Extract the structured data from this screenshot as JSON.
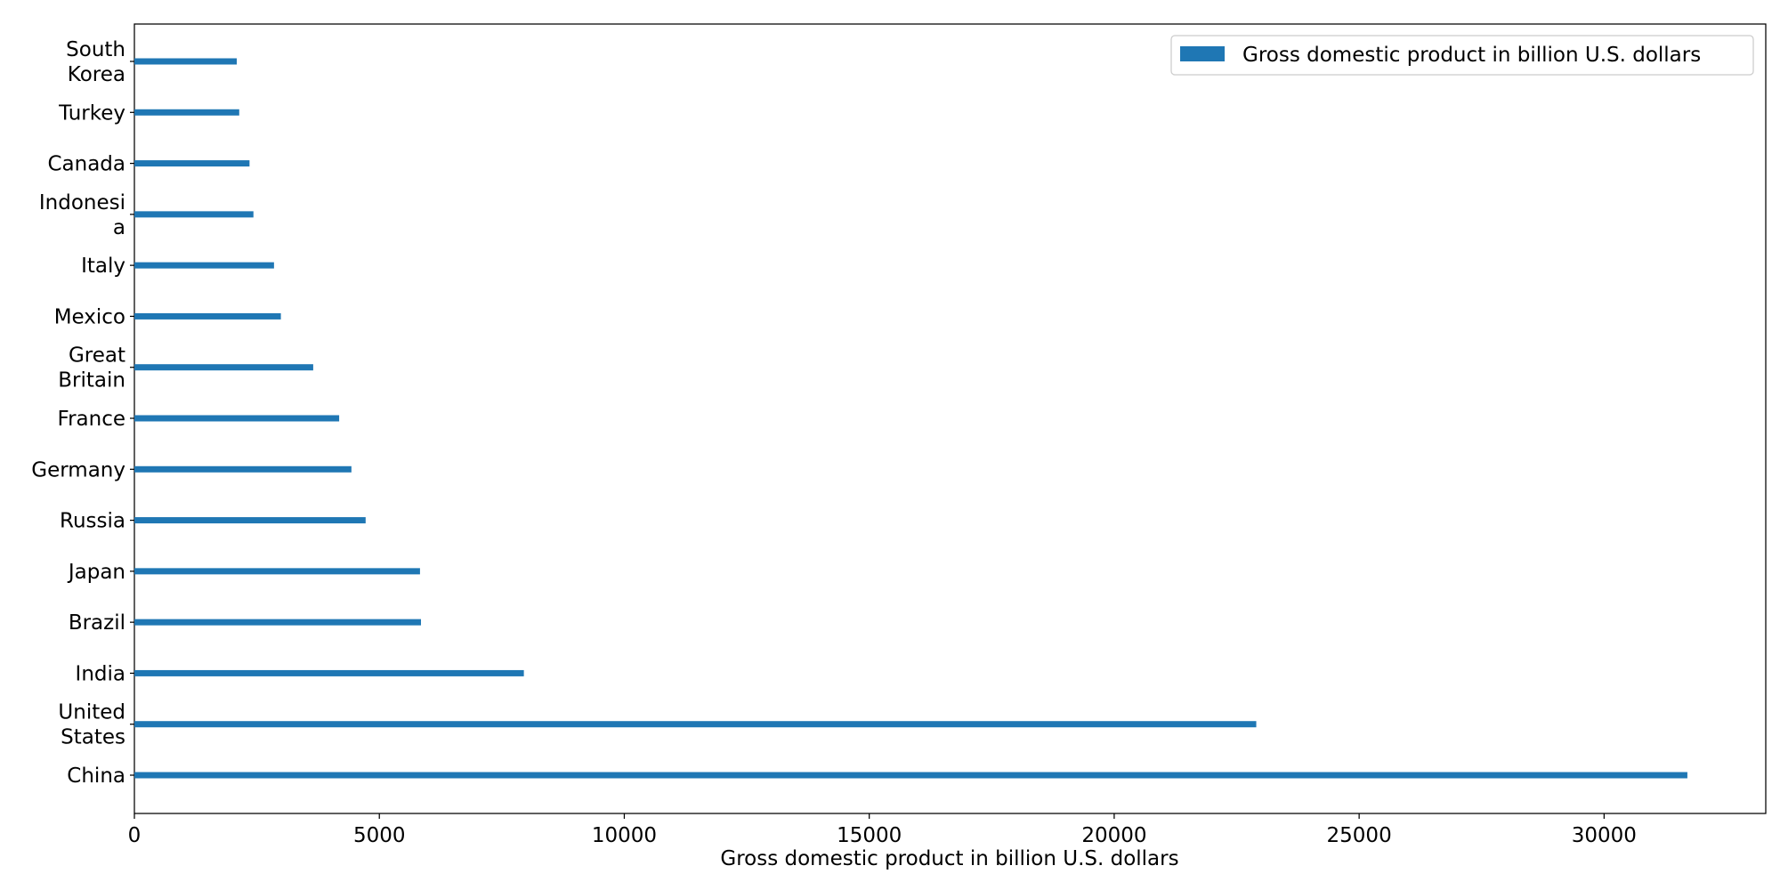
{
  "chart_data": {
    "type": "bar",
    "orientation": "horizontal",
    "categories": [
      "China",
      "United\nStates",
      "India",
      "Brazil",
      "Japan",
      "Russia",
      "Germany",
      "France",
      "Great\nBritain",
      "Mexico",
      "Italy",
      "Indonesi\na",
      "Canada",
      "Turkey",
      "South\nKorea"
    ],
    "series": [
      {
        "name": "Gross domestic product in billion U.S. dollars",
        "color": "#1f77b4",
        "values": [
          31700,
          22900,
          7950,
          5850,
          5830,
          4720,
          4430,
          4180,
          3650,
          2990,
          2850,
          2430,
          2350,
          2140,
          2090
        ]
      }
    ],
    "xlabel": "Gross domestic product in billion U.S. dollars",
    "ylabel": "",
    "xlim": [
      0,
      33300
    ],
    "xticks": [
      0,
      5000,
      10000,
      15000,
      20000,
      25000,
      30000
    ],
    "grid": false,
    "legend": "upper right"
  }
}
